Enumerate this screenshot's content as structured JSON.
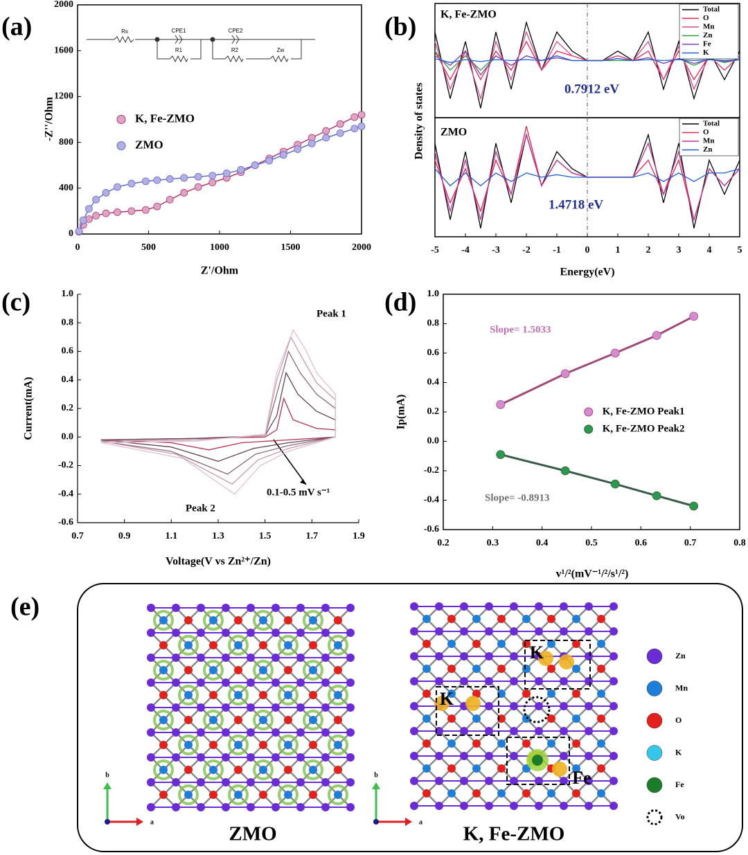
{
  "chart_data": [
    {
      "type": "line",
      "panel_label": "(a)",
      "x_label": "Z'/Ohm",
      "y_label": "-Z''/Ohm",
      "xlim": [
        0,
        2000
      ],
      "xticks": [
        0,
        500,
        1000,
        1500,
        2000
      ],
      "ylim": [
        0,
        2000
      ],
      "yticks": [
        0,
        400,
        800,
        1200,
        1600,
        2000
      ],
      "markers": true,
      "legend_position": "center left",
      "circuit_labels": [
        "Rs",
        "CPE1",
        "R1",
        "CPE2",
        "R2",
        "Zw"
      ],
      "series": [
        {
          "name": "K, Fe-ZMO",
          "color": "#b8336a",
          "marker_color": "#dba6c6",
          "x": [
            10,
            40,
            80,
            130,
            200,
            280,
            380,
            480,
            560,
            650,
            750,
            850,
            950,
            1050,
            1150,
            1250,
            1350,
            1450,
            1550,
            1650,
            1750,
            1850,
            1950,
            2000
          ],
          "values": [
            20,
            80,
            130,
            160,
            180,
            190,
            200,
            210,
            240,
            300,
            360,
            410,
            450,
            490,
            540,
            600,
            660,
            720,
            780,
            840,
            900,
            960,
            1020,
            1040
          ]
        },
        {
          "name": "ZMO",
          "color": "#5a6fd0",
          "marker_color": "#b6ade2",
          "x": [
            10,
            40,
            80,
            130,
            200,
            280,
            380,
            480,
            560,
            650,
            750,
            850,
            950,
            1050,
            1150,
            1250,
            1350,
            1450,
            1550,
            1650,
            1750,
            1850,
            1950,
            2000
          ],
          "values": [
            25,
            120,
            220,
            300,
            360,
            410,
            440,
            460,
            470,
            480,
            490,
            500,
            510,
            530,
            560,
            600,
            640,
            690,
            740,
            790,
            840,
            880,
            920,
            940
          ]
        }
      ]
    },
    {
      "type": "line",
      "panel_label": "(b)",
      "title": "K, Fe-ZMO",
      "y_label": "Density of states",
      "annotations": [
        {
          "text": "0.7912 eV",
          "color": "#1f2f8f"
        }
      ],
      "x": [
        -5,
        -4.5,
        -4,
        -3.5,
        -3,
        -2.5,
        -2,
        -1.5,
        -1,
        -0.5,
        0,
        0.5,
        1,
        1.5,
        2,
        2.5,
        3,
        3.5,
        4,
        4.5,
        5
      ],
      "xlim": [
        -5,
        5
      ],
      "ylim": [
        -6,
        6
      ],
      "legend_position": "upper right",
      "series": [
        {
          "name": "Total",
          "color": "#000000",
          "values": [
            3,
            -4,
            2,
            -5,
            3,
            -3,
            4,
            -1,
            3,
            1,
            0,
            0,
            1,
            0,
            3,
            -3,
            2,
            -4,
            1,
            -2,
            1
          ]
        },
        {
          "name": "O",
          "color": "#e8234a",
          "values": [
            1,
            -2,
            1,
            -2,
            1,
            -1,
            2,
            -1,
            1,
            0.5,
            0,
            0,
            0.5,
            0,
            1,
            -2,
            1,
            -2,
            0.5,
            -1,
            0.5
          ]
        },
        {
          "name": "Mn",
          "color": "#d9468c",
          "values": [
            2,
            -3,
            1,
            -4,
            2,
            -2,
            3,
            -1,
            2,
            0.5,
            0,
            0,
            0.5,
            0,
            2,
            -2,
            1.5,
            -3,
            0.5,
            -1,
            0.5
          ]
        },
        {
          "name": "Zn",
          "color": "#2e9a3e",
          "values": [
            1,
            -1,
            0.5,
            -1,
            0.5,
            -0.5,
            0.5,
            0,
            0.3,
            0,
            0,
            0,
            0,
            0,
            0.3,
            -0.3,
            0.2,
            -0.5,
            0.2,
            -0.2,
            0.1
          ]
        },
        {
          "name": "Fe",
          "color": "#7d3fb8",
          "values": [
            0.5,
            -0.5,
            1,
            -1.5,
            0.5,
            -0.5,
            0.5,
            0,
            0.3,
            0,
            0,
            0,
            0.2,
            0,
            0.3,
            -0.3,
            0.2,
            -0.3,
            0.1,
            -0.1,
            0.1
          ]
        },
        {
          "name": "K",
          "color": "#1f5fd0",
          "values": [
            0.2,
            -0.2,
            0.1,
            -0.1,
            0.1,
            0,
            0.1,
            0,
            0.5,
            0,
            0,
            0,
            0.2,
            0,
            0.1,
            0,
            0.1,
            0,
            0.1,
            0,
            0.1
          ]
        }
      ]
    },
    {
      "type": "line",
      "title": "ZMO",
      "x_label": "Energy(eV)",
      "annotations": [
        {
          "text": "1.4718 eV",
          "color": "#1f2f8f"
        }
      ],
      "x": [
        -5,
        -4.5,
        -4,
        -3.5,
        -3,
        -2.5,
        -2,
        -1.5,
        -1,
        -0.5,
        0,
        0.5,
        1,
        1.5,
        2,
        2.5,
        3,
        3.5,
        4,
        4.5,
        5
      ],
      "xlim": [
        -5,
        5
      ],
      "xticks": [
        -5,
        -4,
        -3,
        -2,
        -1,
        0,
        1,
        2,
        3,
        4,
        5
      ],
      "ylim": [
        -7,
        7
      ],
      "legend_position": "upper right",
      "series": [
        {
          "name": "Total",
          "color": "#000000",
          "values": [
            4,
            -5,
            3,
            -6,
            4,
            -3,
            5,
            -1,
            3,
            1,
            0,
            0,
            0,
            0,
            5,
            -3,
            4,
            -6,
            2,
            -2,
            2
          ]
        },
        {
          "name": "O",
          "color": "#e8234a",
          "values": [
            2,
            -3,
            1,
            -4,
            2,
            -2,
            6,
            -1,
            2,
            0.5,
            0,
            0,
            0,
            0,
            2,
            -2,
            2,
            -5,
            1,
            -1,
            1
          ]
        },
        {
          "name": "Mn",
          "color": "#c0309a",
          "values": [
            3,
            -4,
            2,
            -5,
            3,
            -2,
            5,
            -1,
            2,
            0.5,
            0,
            0,
            0,
            0,
            4,
            -2,
            3,
            -5,
            1,
            -1,
            1
          ]
        },
        {
          "name": "Zn",
          "color": "#1f5fd0",
          "values": [
            1,
            -1,
            0.5,
            -1,
            0.5,
            -0.5,
            0.5,
            0,
            0.3,
            0,
            0,
            0,
            0,
            0,
            0.5,
            -0.5,
            0.5,
            -0.5,
            0.5,
            0.5,
            1
          ]
        }
      ]
    },
    {
      "type": "line",
      "panel_label": "(c)",
      "x_label": "Voltage(V vs Zn²⁺/Zn)",
      "y_label": "Current(mA)",
      "xlim": [
        0.7,
        1.9
      ],
      "xticks": [
        0.7,
        0.9,
        1.1,
        1.3,
        1.5,
        1.7,
        1.9
      ],
      "ylim": [
        -0.6,
        1.0
      ],
      "yticks": [
        -0.6,
        -0.4,
        -0.2,
        {
          "value": 0,
          "label": "0.0"
        },
        0.2,
        0.4,
        0.6,
        0.8,
        {
          "value": 1,
          "label": "1.0"
        }
      ],
      "annotations": [
        {
          "text": "Peak 1",
          "color": "#000000"
        },
        {
          "text": "Peak 2",
          "color": "#000000"
        },
        {
          "text": "0.1-0.5 mV s⁻¹",
          "color": "#000000"
        }
      ],
      "series": [
        {
          "color": "#b03050",
          "x": [
            0.8,
            1.2,
            1.5,
            1.55,
            1.58,
            1.62,
            1.72,
            1.8,
            1.8,
            1.6,
            1.4,
            1.26,
            1.1,
            0.8
          ],
          "values": [
            -0.02,
            -0.01,
            0,
            0.05,
            0.27,
            0.12,
            0.06,
            0.05,
            0,
            -0.02,
            -0.04,
            -0.09,
            -0.04,
            -0.02
          ]
        },
        {
          "color": "#5e4452",
          "x": [
            0.8,
            1.2,
            1.5,
            1.55,
            1.59,
            1.64,
            1.72,
            1.8,
            1.8,
            1.6,
            1.45,
            1.3,
            1.1,
            0.8
          ],
          "values": [
            -0.02,
            -0.01,
            0.01,
            0.15,
            0.45,
            0.3,
            0.18,
            0.12,
            0,
            -0.04,
            -0.08,
            -0.17,
            -0.07,
            -0.02
          ]
        },
        {
          "color": "#8a6a7a",
          "x": [
            0.8,
            1.2,
            1.5,
            1.55,
            1.6,
            1.65,
            1.72,
            1.8,
            1.8,
            1.6,
            1.46,
            1.34,
            1.1,
            0.8
          ],
          "values": [
            -0.03,
            -0.02,
            0.01,
            0.3,
            0.6,
            0.45,
            0.3,
            0.2,
            0,
            -0.06,
            -0.12,
            -0.26,
            -0.1,
            -0.03
          ]
        },
        {
          "color": "#c898b0",
          "x": [
            0.8,
            1.2,
            1.5,
            1.55,
            1.61,
            1.66,
            1.72,
            1.8,
            1.8,
            1.6,
            1.47,
            1.36,
            1.12,
            0.8
          ],
          "values": [
            -0.03,
            -0.02,
            0.01,
            0.4,
            0.7,
            0.55,
            0.38,
            0.26,
            0,
            -0.08,
            -0.16,
            -0.33,
            -0.12,
            -0.03
          ]
        },
        {
          "color": "#e0c0d0",
          "x": [
            0.8,
            1.2,
            1.5,
            1.55,
            1.62,
            1.67,
            1.72,
            1.8,
            1.8,
            1.6,
            1.48,
            1.37,
            1.15,
            0.8
          ],
          "values": [
            -0.04,
            -0.03,
            0.02,
            0.45,
            0.75,
            0.62,
            0.45,
            0.3,
            0,
            -0.1,
            -0.2,
            -0.4,
            -0.15,
            -0.04
          ]
        }
      ]
    },
    {
      "type": "scatter",
      "panel_label": "(d)",
      "x_label": "v¹/²(mV⁻¹/²/s¹/²)",
      "y_label": "Ip(mA)",
      "xlim": [
        0.2,
        0.8
      ],
      "xticks": [
        0.2,
        0.3,
        0.4,
        0.5,
        0.6,
        0.7,
        0.8
      ],
      "ylim": [
        -0.6,
        1.0
      ],
      "yticks": [
        -0.6,
        -0.4,
        -0.2,
        {
          "value": 0,
          "label": "0.0"
        },
        0.2,
        0.4,
        0.6,
        0.8,
        {
          "value": 1,
          "label": "1.0"
        }
      ],
      "x": [
        0.316,
        0.447,
        0.548,
        0.632,
        0.707
      ],
      "legend_position": "center right",
      "annotations": [
        {
          "text": "Slope= 1.5033",
          "color": "#c070b0"
        },
        {
          "text": "Slope= -0.8913",
          "color": "#707070"
        }
      ],
      "series": [
        {
          "name": "K, Fe-ZMO Peak1",
          "color": "#a04a7a",
          "marker_color": "#d68ad0",
          "values": [
            0.25,
            0.46,
            0.6,
            0.72,
            0.85
          ]
        },
        {
          "name": "K, Fe-ZMO Peak2",
          "color": "#3a5a4a",
          "marker_color": "#2a9a4a",
          "values": [
            -0.09,
            -0.2,
            -0.29,
            -0.37,
            -0.44
          ]
        }
      ]
    }
  ],
  "structure_panel": {
    "panel_label": "(e)",
    "captions": [
      "ZMO",
      "K, Fe-ZMO"
    ],
    "region_labels": [
      "K",
      "K",
      "Fe"
    ],
    "axis_labels": [
      "b",
      "a"
    ],
    "legend": [
      {
        "name": "Zn",
        "color": "#6b2bd6"
      },
      {
        "name": "Mn",
        "color": "#1e7fd8"
      },
      {
        "name": "O",
        "color": "#e3201b"
      },
      {
        "name": "K",
        "color": "#35c7ea"
      },
      {
        "name": "Fe",
        "color": "#1b7d2a"
      },
      {
        "name": "Vo",
        "color": "#000000"
      }
    ]
  }
}
